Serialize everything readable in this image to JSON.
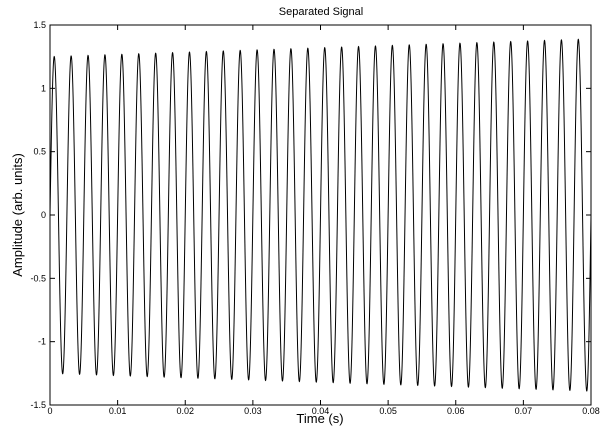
{
  "chart_data": {
    "type": "line",
    "title": "Separated Signal",
    "xlabel": "Time (s)",
    "ylabel": "Amplitude (arb. units)",
    "xlim": [
      0,
      0.08
    ],
    "ylim": [
      -1.5,
      1.5
    ],
    "xticks": [
      0,
      0.01,
      0.02,
      0.03,
      0.04,
      0.05,
      0.06,
      0.07,
      0.08
    ],
    "xtick_labels": [
      "0",
      "0.01",
      "0.02",
      "0.03",
      "0.04",
      "0.05",
      "0.06",
      "0.07",
      "0.08"
    ],
    "yticks": [
      -1.5,
      -1,
      -0.5,
      0,
      0.5,
      1,
      1.5
    ],
    "ytick_labels": [
      "-1.5",
      "-1",
      "-0.5",
      "0",
      "0.5",
      "1",
      "1.5"
    ],
    "grid": false,
    "series": [
      {
        "frequency_hz": 400,
        "amplitude_start": 1.25,
        "amplitude_end": 1.39,
        "phase_offset_s": 0.000625,
        "sample_step_s": 2e-05,
        "color": "#000000"
      }
    ]
  }
}
